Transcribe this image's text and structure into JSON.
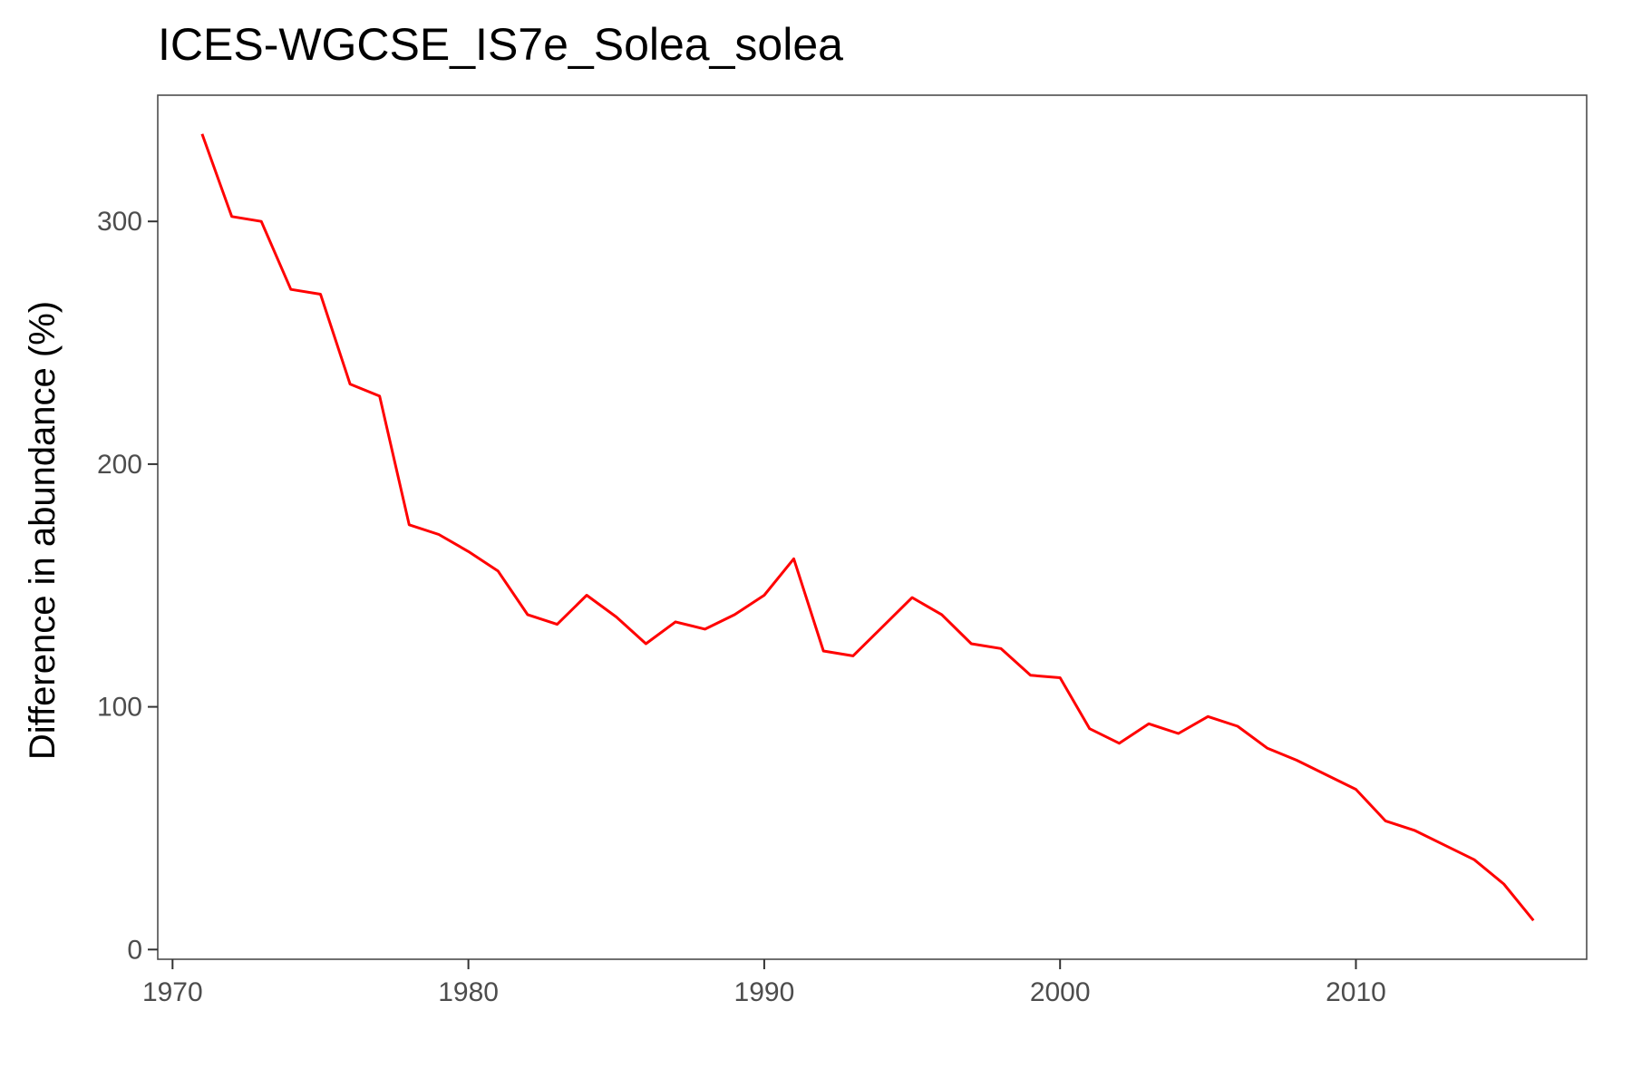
{
  "chart_data": {
    "type": "line",
    "title": "ICES-WGCSE_IS7e_Solea_solea",
    "xlabel": "",
    "ylabel": "Difference in abundance (%)",
    "xlim": [
      1969.5,
      2017.8
    ],
    "ylim": [
      -4,
      352
    ],
    "x_ticks": [
      1970,
      1980,
      1990,
      2000,
      2010
    ],
    "y_ticks": [
      0,
      100,
      200,
      300
    ],
    "x_tick_labels": [
      "1970",
      "1980",
      "1990",
      "2000",
      "2010"
    ],
    "y_tick_labels": [
      "0",
      "100",
      "200",
      "300"
    ],
    "grid": false,
    "legend": "none",
    "series": [
      {
        "color": "#ff0000",
        "x": [
          1971,
          1972,
          1973,
          1974,
          1975,
          1976,
          1977,
          1978,
          1979,
          1980,
          1981,
          1982,
          1983,
          1984,
          1985,
          1986,
          1987,
          1988,
          1989,
          1990,
          1991,
          1992,
          1993,
          1994,
          1995,
          1996,
          1997,
          1998,
          1999,
          2000,
          2001,
          2002,
          2003,
          2004,
          2005,
          2006,
          2007,
          2008,
          2009,
          2010,
          2011,
          2012,
          2013,
          2014,
          2015,
          2016
        ],
        "y": [
          336,
          302,
          300,
          272,
          270,
          233,
          228,
          175,
          171,
          164,
          156,
          138,
          134,
          146,
          137,
          126,
          135,
          132,
          138,
          146,
          161,
          123,
          121,
          133,
          145,
          138,
          126,
          124,
          113,
          112,
          91,
          85,
          93,
          89,
          96,
          92,
          83,
          78,
          72,
          66,
          53,
          49,
          43,
          37,
          27,
          12
        ]
      }
    ]
  }
}
